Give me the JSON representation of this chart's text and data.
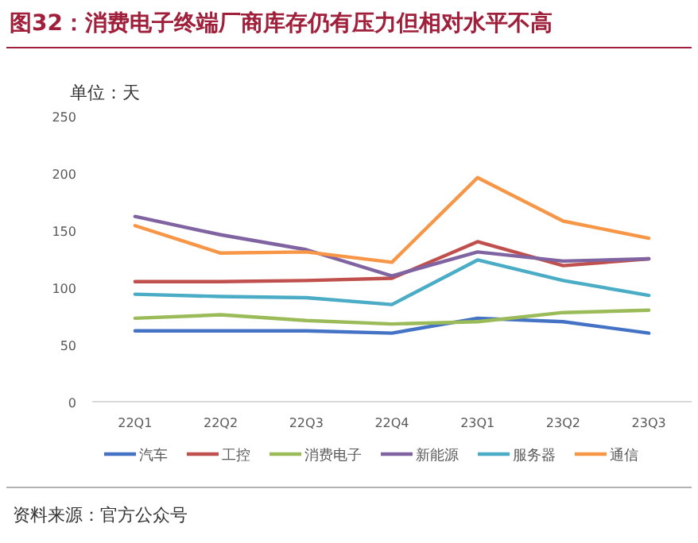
{
  "chart_data": {
    "type": "line",
    "title": "图32：消费电子终端厂商库存仍有压力但相对水平不高",
    "ylabel": "单位：天",
    "categories": [
      "22Q1",
      "22Q2",
      "22Q3",
      "22Q4",
      "23Q1",
      "23Q2",
      "23Q3"
    ],
    "series": [
      {
        "name": "汽车",
        "color": "#4472c4",
        "values": [
          62,
          62,
          62,
          60,
          73,
          70,
          60
        ]
      },
      {
        "name": "工控",
        "color": "#c0504d",
        "values": [
          105,
          105,
          106,
          108,
          140,
          119,
          125
        ]
      },
      {
        "name": "消费电子",
        "color": "#9bbb59",
        "values": [
          73,
          76,
          71,
          68,
          70,
          78,
          80
        ]
      },
      {
        "name": "新能源",
        "color": "#8064a2",
        "values": [
          162,
          146,
          133,
          110,
          131,
          123,
          125
        ]
      },
      {
        "name": "服务器",
        "color": "#4bacc6",
        "values": [
          94,
          92,
          91,
          85,
          124,
          106,
          93
        ]
      },
      {
        "name": "通信",
        "color": "#f79646",
        "values": [
          154,
          130,
          131,
          122,
          196,
          158,
          143
        ]
      }
    ],
    "ylim": [
      0,
      250
    ],
    "yticks": [
      0,
      50,
      100,
      150,
      200,
      250
    ],
    "legend": "bottom",
    "marker": "none",
    "line_style": "solid",
    "annotations": [
      "资料来源：官方公众号"
    ]
  }
}
